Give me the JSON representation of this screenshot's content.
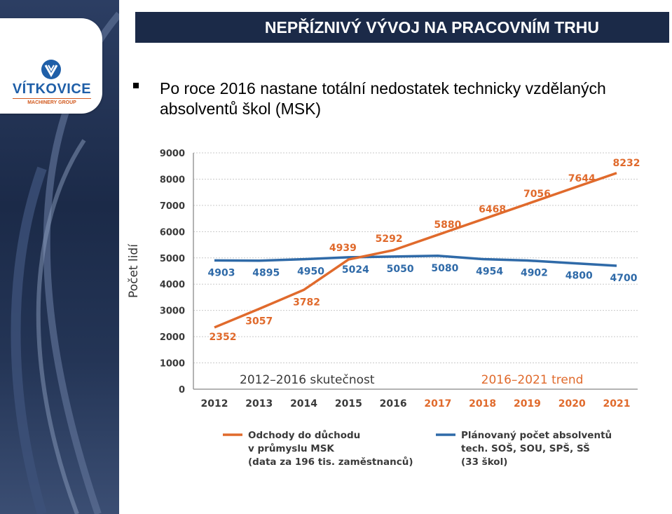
{
  "logo": {
    "name": "VÍTKOVICE",
    "sub": "MACHINERY GROUP"
  },
  "header": {
    "title": "NEPŘÍZNIVÝ VÝVOJ NA PRACOVNÍM TRHU"
  },
  "bullet": {
    "text": "Po roce 2016 nastane totální nedostatek technicky vzdělaných absolventů škol (MSK)"
  },
  "chart_data": {
    "type": "line",
    "x": [
      "2012",
      "2013",
      "2014",
      "2015",
      "2016",
      "2017",
      "2018",
      "2019",
      "2020",
      "2021"
    ],
    "ylabel": "Počet lidí",
    "ylim": [
      0,
      9000
    ],
    "yticks": [
      "0",
      "1000",
      "2000",
      "3000",
      "4000",
      "5000",
      "6000",
      "7000",
      "8000",
      "9000"
    ],
    "grid": true,
    "series": [
      {
        "name": "Odchody do důchodu v průmyslu MSK (data za 196 tis. zaměstnanců)",
        "color": "#e06a2c",
        "values": [
          2352,
          3057,
          3782,
          4939,
          5292,
          5880,
          6468,
          7056,
          7644,
          8232
        ]
      },
      {
        "name": "Plánovaný počet absolventů tech. SOŠ, SOU, SPŠ, SŠ (33 škol)",
        "color": "#2f6aa8",
        "values": [
          4903,
          4895,
          4950,
          5024,
          5050,
          5080,
          4954,
          4902,
          4800,
          4700
        ]
      }
    ],
    "annotations": [
      "2012–2016 skutečnost",
      "2016–2021 trend"
    ],
    "legend": {
      "placement": "bottom",
      "items": [
        {
          "lines": [
            "Odchody do důchodu",
            "v průmyslu MSK",
            "(data za 196 tis. zaměstnanců)"
          ],
          "color": "#e06a2c"
        },
        {
          "lines": [
            "Plánovaný počet absolventů",
            "tech. SOŠ, SOU, SPŠ, SŠ",
            "(33 škol)"
          ],
          "color": "#2f6aa8"
        }
      ]
    }
  }
}
